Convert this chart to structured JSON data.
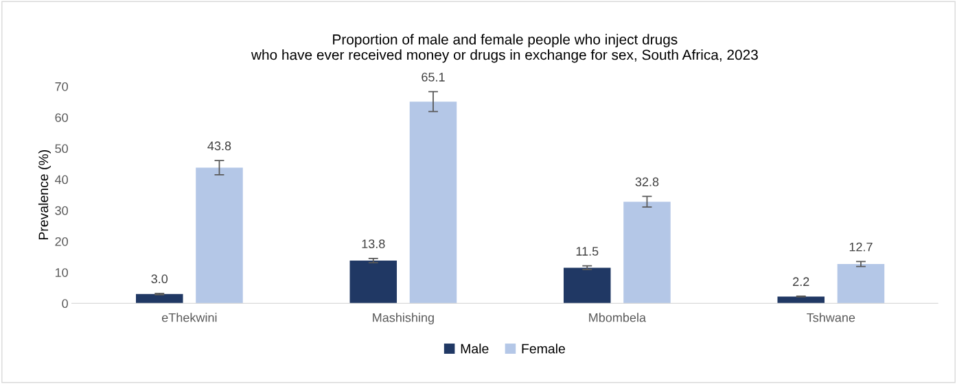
{
  "chart_data": {
    "type": "bar",
    "title": "Proportion of male and female people who inject drugs\nwho have ever received money or drugs in exchange for sex, South Africa, 2023",
    "ylabel": "Prevalence (%)",
    "categories": [
      "eThekwini",
      "Mashishing",
      "Mbombela",
      "Tshwane"
    ],
    "series": [
      {
        "name": "Male",
        "color": "#203864",
        "values": [
          3.0,
          13.8,
          11.5,
          2.2
        ],
        "value_labels": [
          "3.0",
          "13.8",
          "11.5",
          "2.2"
        ],
        "errors": [
          0.2,
          0.7,
          0.6,
          0.1
        ]
      },
      {
        "name": "Female",
        "color": "#b4c7e7",
        "values": [
          43.8,
          65.1,
          32.8,
          12.7
        ],
        "value_labels": [
          "43.8",
          "65.1",
          "32.8",
          "12.7"
        ],
        "errors": [
          2.3,
          3.2,
          1.7,
          0.8
        ]
      }
    ],
    "ylim": [
      0,
      70
    ],
    "yticks": [
      0,
      10,
      20,
      30,
      40,
      50,
      60,
      70
    ],
    "grid": false,
    "legend": "bottom"
  }
}
